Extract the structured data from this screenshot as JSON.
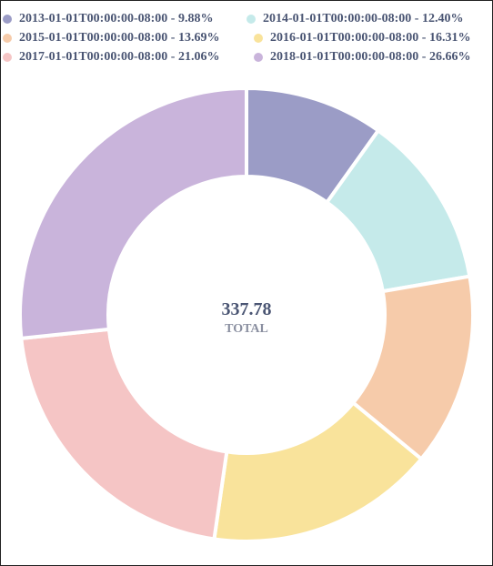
{
  "chart_data": {
    "type": "pie",
    "title": "",
    "categories": [
      "2013-01-01T00:00:00-08:00",
      "2014-01-01T00:00:00-08:00",
      "2015-01-01T00:00:00-08:00",
      "2016-01-01T00:00:00-08:00",
      "2017-01-01T00:00:00-08:00",
      "2018-01-01T00:00:00-08:00"
    ],
    "percentages": [
      9.88,
      12.4,
      13.69,
      16.31,
      21.06,
      26.66
    ],
    "legend_labels": [
      "2013-01-01T00:00:00-08:00 - 9.88%",
      "2014-01-01T00:00:00-08:00 - 12.40%",
      "2015-01-01T00:00:00-08:00 - 13.69%",
      "2016-01-01T00:00:00-08:00 - 16.31%",
      "2017-01-01T00:00:00-08:00 - 21.06%",
      "2018-01-01T00:00:00-08:00 - 26.66%"
    ],
    "colors": [
      "#9b9cc6",
      "#c5eaea",
      "#f6cbaa",
      "#f9e39b",
      "#f5c5c5",
      "#c9b4db"
    ],
    "total": {
      "value": "337.78",
      "label": "TOTAL"
    },
    "legend_position": "top"
  }
}
